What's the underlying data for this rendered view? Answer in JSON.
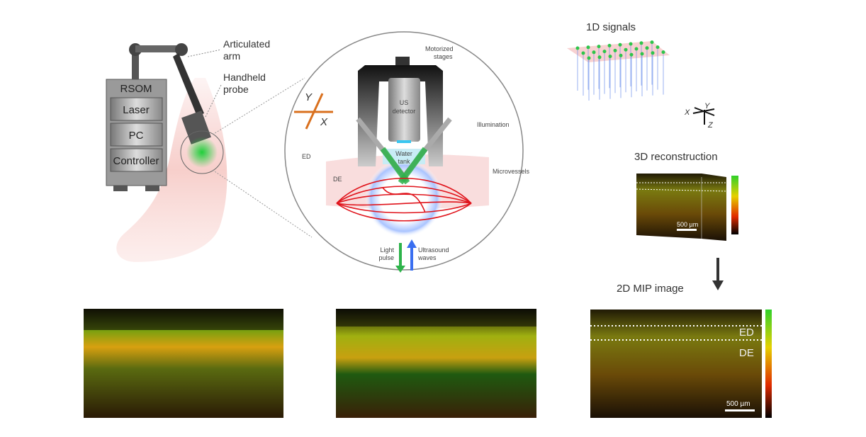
{
  "device": {
    "title": "RSOM",
    "modules": [
      "Laser",
      "PC",
      "Controller"
    ],
    "arm_label": [
      "Articulated",
      "arm"
    ],
    "probe_label": [
      "Handheld",
      "probe"
    ]
  },
  "inset": {
    "axes": {
      "y": "Y",
      "x": "X"
    },
    "stages_label": [
      "Motorized",
      "stages"
    ],
    "detector_label": [
      "US",
      "detector"
    ],
    "illumination_label": "Illumination",
    "water_label": [
      "Water",
      "tank"
    ],
    "ed_label": "ED",
    "de_label": "DE",
    "microvessels_label": "Microvessels",
    "light_label": [
      "Light",
      "pulse"
    ],
    "ultrasound_label": [
      "Ultrasound",
      "waves"
    ]
  },
  "pipeline": {
    "signals_title": "1D signals",
    "axes": {
      "x": "X",
      "y": "Y",
      "z": "Z"
    },
    "recon_title": "3D reconstruction",
    "recon_scale": "500 µm",
    "mip_title": "2D MIP image",
    "mip_ed": "ED",
    "mip_de": "DE",
    "mip_scale": "500 µm"
  },
  "colors": {
    "laser_green": "#2db34a",
    "vessel_red": "#e0141c",
    "ultrasound_blue": "#3a6ff0",
    "axis_orange": "#d9701e"
  }
}
